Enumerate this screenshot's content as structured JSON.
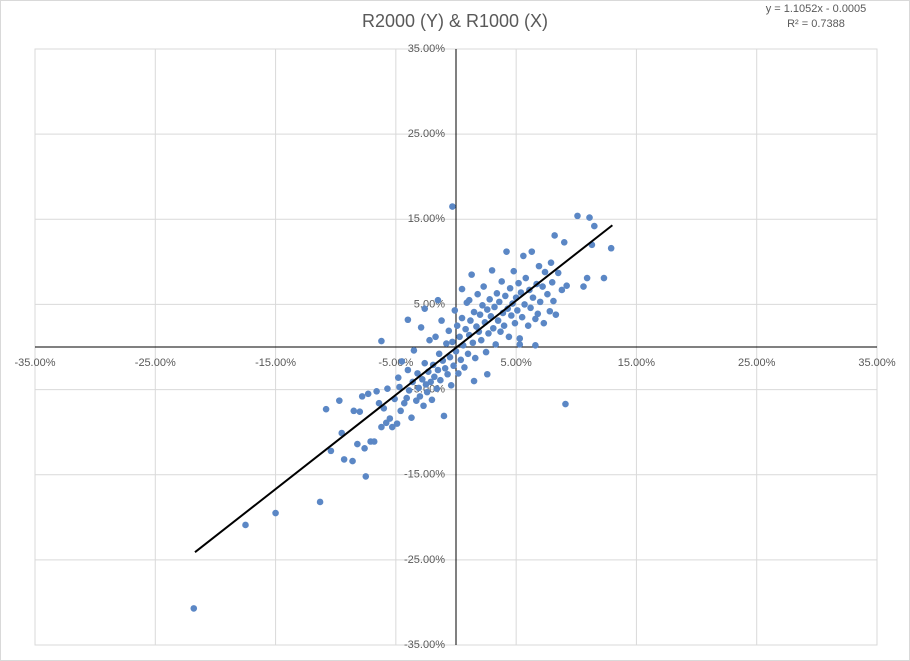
{
  "chart_data": {
    "type": "scatter",
    "title": "R2000 (Y) & R1000 (X)",
    "annotations": [
      "y = 1.1052x - 0.0005",
      "R² = 0.7388"
    ],
    "color": "#5b87c5",
    "grid": true,
    "xlim": [
      -0.35,
      0.35
    ],
    "ylim": [
      -0.35,
      0.35
    ],
    "xticks": [
      {
        "value": -0.35,
        "label": "-35.00%"
      },
      {
        "value": -0.25,
        "label": "-25.00%"
      },
      {
        "value": -0.15,
        "label": "-15.00%"
      },
      {
        "value": -0.05,
        "label": "-5.00%"
      },
      {
        "value": 0.05,
        "label": "5.00%"
      },
      {
        "value": 0.15,
        "label": "15.00%"
      },
      {
        "value": 0.25,
        "label": "25.00%"
      },
      {
        "value": 0.35,
        "label": "35.00%"
      }
    ],
    "yticks": [
      {
        "value": -0.35,
        "label": "-35.00%"
      },
      {
        "value": -0.25,
        "label": "-25.00%"
      },
      {
        "value": -0.15,
        "label": "-15.00%"
      },
      {
        "value": -0.05,
        "label": "-5.00%"
      },
      {
        "value": 0.05,
        "label": "5.00%"
      },
      {
        "value": 0.15,
        "label": "15.00%"
      },
      {
        "value": 0.25,
        "label": "25.00%"
      },
      {
        "value": 0.35,
        "label": "35.00%"
      }
    ],
    "x": [
      -0.218,
      -0.175,
      -0.15,
      -0.113,
      -0.108,
      -0.104,
      -0.097,
      -0.095,
      -0.093,
      -0.086,
      -0.085,
      -0.082,
      -0.08,
      -0.078,
      -0.076,
      -0.075,
      -0.073,
      -0.071,
      -0.068,
      -0.066,
      -0.064,
      -0.062,
      -0.06,
      -0.058,
      -0.057,
      -0.055,
      -0.053,
      -0.051,
      -0.049,
      -0.048,
      -0.047,
      -0.046,
      -0.045,
      -0.043,
      -0.041,
      -0.04,
      -0.039,
      -0.037,
      -0.036,
      -0.035,
      -0.033,
      -0.032,
      -0.031,
      -0.03,
      -0.029,
      -0.028,
      -0.027,
      -0.026,
      -0.025,
      -0.024,
      -0.023,
      -0.022,
      -0.021,
      -0.02,
      -0.019,
      -0.018,
      -0.017,
      -0.016,
      -0.015,
      -0.014,
      -0.013,
      -0.012,
      -0.011,
      -0.01,
      -0.009,
      -0.008,
      -0.007,
      -0.006,
      -0.005,
      -0.004,
      -0.003,
      -0.003,
      -0.002,
      -0.001,
      0.0,
      0.001,
      0.002,
      0.003,
      0.004,
      0.005,
      0.006,
      0.007,
      0.008,
      0.009,
      0.01,
      0.011,
      0.012,
      0.013,
      0.014,
      0.015,
      0.016,
      0.017,
      0.018,
      0.019,
      0.02,
      0.021,
      0.022,
      0.023,
      0.024,
      0.025,
      0.026,
      0.027,
      0.028,
      0.029,
      0.03,
      0.031,
      0.032,
      0.033,
      0.034,
      0.035,
      0.036,
      0.037,
      0.038,
      0.039,
      0.04,
      0.041,
      0.042,
      0.043,
      0.044,
      0.045,
      0.046,
      0.047,
      0.048,
      0.049,
      0.05,
      0.051,
      0.052,
      0.053,
      0.054,
      0.055,
      0.056,
      0.057,
      0.058,
      0.06,
      0.061,
      0.062,
      0.063,
      0.064,
      0.066,
      0.067,
      0.068,
      0.069,
      0.07,
      0.072,
      0.073,
      0.074,
      0.076,
      0.078,
      0.079,
      0.08,
      0.081,
      0.082,
      0.083,
      0.085,
      0.088,
      0.09,
      0.091,
      0.092,
      0.101,
      0.106,
      0.109,
      0.111,
      0.113,
      0.115,
      0.123,
      0.129,
      -0.04,
      -0.026,
      -0.015,
      0.005,
      0.011,
      -0.062,
      0.053,
      0.066,
      0.015,
      0.026
    ],
    "values": [
      -0.307,
      -0.209,
      -0.195,
      -0.182,
      -0.073,
      -0.122,
      -0.063,
      -0.101,
      -0.132,
      -0.134,
      -0.075,
      -0.114,
      -0.076,
      -0.058,
      -0.119,
      -0.152,
      -0.055,
      -0.111,
      -0.111,
      -0.052,
      -0.066,
      -0.094,
      -0.072,
      -0.089,
      -0.049,
      -0.084,
      -0.094,
      -0.061,
      -0.09,
      -0.036,
      -0.047,
      -0.075,
      -0.017,
      -0.066,
      -0.06,
      -0.027,
      -0.051,
      -0.083,
      -0.041,
      -0.004,
      -0.063,
      -0.031,
      -0.048,
      -0.058,
      0.023,
      -0.038,
      -0.069,
      -0.019,
      -0.044,
      -0.053,
      -0.029,
      0.008,
      -0.041,
      -0.062,
      -0.021,
      -0.035,
      0.012,
      -0.049,
      -0.027,
      -0.008,
      -0.039,
      0.031,
      -0.016,
      -0.081,
      -0.025,
      0.004,
      -0.032,
      0.019,
      -0.012,
      -0.045,
      0.165,
      0.006,
      -0.022,
      0.043,
      -0.005,
      0.025,
      -0.031,
      0.012,
      -0.015,
      0.034,
      0.002,
      -0.024,
      0.021,
      0.052,
      -0.008,
      0.014,
      0.031,
      0.085,
      0.005,
      0.041,
      -0.013,
      0.024,
      0.062,
      0.018,
      0.038,
      0.008,
      0.049,
      0.071,
      0.029,
      -0.006,
      0.044,
      0.016,
      0.056,
      0.036,
      0.09,
      0.022,
      0.047,
      0.003,
      0.063,
      0.031,
      0.053,
      0.018,
      0.077,
      0.04,
      0.025,
      0.06,
      0.112,
      0.045,
      0.012,
      0.069,
      0.037,
      0.051,
      0.089,
      0.028,
      0.058,
      0.043,
      0.075,
      0.01,
      0.064,
      0.035,
      0.107,
      0.05,
      0.081,
      0.025,
      0.067,
      0.046,
      0.112,
      0.058,
      0.002,
      0.074,
      0.039,
      0.095,
      0.053,
      0.071,
      0.028,
      0.088,
      0.062,
      0.042,
      0.099,
      0.076,
      0.054,
      0.131,
      0.038,
      0.087,
      0.067,
      0.123,
      -0.067,
      0.072,
      0.154,
      0.071,
      0.081,
      0.152,
      0.12,
      0.142,
      0.081,
      0.116,
      0.032,
      0.045,
      0.055,
      0.068,
      0.055,
      0.007,
      0.003,
      0.033,
      -0.04,
      -0.032
    ],
    "trendline": {
      "x": [
        -0.217,
        0.13
      ],
      "values": [
        -0.241,
        0.143
      ],
      "color": "#000000"
    }
  }
}
